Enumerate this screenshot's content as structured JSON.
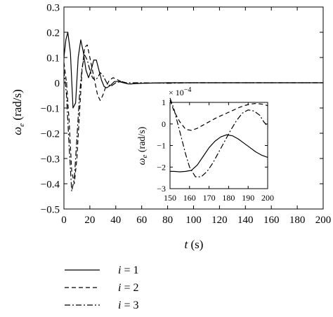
{
  "chart_data": [
    {
      "type": "line",
      "title": "",
      "xlabel": {
        "symbol": "t",
        "unit": " (s)"
      },
      "ylabel": {
        "symbol": "ω",
        "subscript": "e",
        "unit": " (rad/s)"
      },
      "xlim": [
        0,
        200
      ],
      "ylim": [
        -0.5,
        0.3
      ],
      "xticks": [
        "0",
        "20",
        "40",
        "60",
        "80",
        "100",
        "120",
        "140",
        "160",
        "180",
        "200"
      ],
      "yticks": [
        "0.3",
        "0.2",
        "0.1",
        "0",
        "−0.1",
        "−0.2",
        "−0.3",
        "−0.4",
        "−0.5"
      ],
      "series": [
        {
          "name": "i = 1",
          "style": "solid",
          "x": [
            0,
            1.5,
            3,
            5,
            7,
            9,
            11,
            13,
            15,
            17,
            19,
            21,
            23,
            25,
            27,
            29,
            31,
            33,
            36,
            39,
            42,
            46,
            50,
            60,
            80,
            100,
            150,
            200
          ],
          "y": [
            0.1,
            0.17,
            0.2,
            0.12,
            -0.1,
            -0.08,
            0.1,
            0.17,
            0.12,
            0.05,
            0.02,
            0.05,
            0.09,
            0.09,
            0.05,
            0.01,
            -0.015,
            -0.02,
            -0.01,
            0.005,
            0.005,
            0.0,
            -0.005,
            -0.002,
            0.0,
            0.0,
            0.0,
            0.0
          ]
        },
        {
          "name": "i = 2",
          "style": "dashed",
          "x": [
            0,
            2,
            4,
            6,
            8,
            10,
            12,
            14,
            16,
            18,
            20,
            22,
            24,
            26,
            28,
            30,
            32,
            35,
            38,
            42,
            46,
            50,
            60,
            80,
            100,
            150,
            200
          ],
          "y": [
            0.08,
            0.0,
            -0.15,
            -0.35,
            -0.4,
            -0.3,
            -0.12,
            0.05,
            0.14,
            0.15,
            0.1,
            0.05,
            0.0,
            -0.05,
            -0.07,
            -0.05,
            -0.02,
            0.01,
            0.02,
            0.01,
            0.0,
            -0.005,
            -0.002,
            0.0,
            0.0,
            0.0,
            0.0
          ]
        },
        {
          "name": "i = 3",
          "style": "dashdot",
          "x": [
            0,
            2,
            4,
            6,
            8,
            10,
            12,
            14,
            16,
            18,
            20,
            22,
            24,
            26,
            28,
            30,
            33,
            36,
            40,
            44,
            48,
            52,
            60,
            80,
            100,
            150,
            200
          ],
          "y": [
            0.05,
            -0.05,
            -0.25,
            -0.43,
            -0.38,
            -0.22,
            -0.05,
            0.06,
            0.11,
            0.09,
            0.05,
            0.02,
            0.01,
            0.02,
            0.04,
            0.03,
            0.0,
            -0.015,
            0.0,
            0.005,
            0.0,
            0.0,
            0.0,
            -0.002,
            0.0,
            0.0,
            0.0
          ]
        }
      ],
      "legend": "bottom-left"
    },
    {
      "type": "line",
      "title": "",
      "inset": true,
      "scale_label": "× 10",
      "scale_exponent": "−4",
      "xlim": [
        150,
        200
      ],
      "ylim": [
        -3,
        1
      ],
      "xticks": [
        "150",
        "160",
        "170",
        "180",
        "190",
        "200"
      ],
      "yticks": [
        "1",
        "0",
        "−1",
        "−2",
        "−3"
      ],
      "ylabel": {
        "symbol": "ω",
        "subscript": "e",
        "unit": " (rad/s)"
      },
      "series": [
        {
          "name": "i = 1",
          "style": "solid",
          "x": [
            150,
            152,
            155,
            158,
            161,
            164,
            167,
            170,
            173,
            176,
            179,
            182,
            185,
            188,
            191,
            194,
            197,
            200
          ],
          "y": [
            -2.2,
            -2.2,
            -2.22,
            -2.2,
            -2.15,
            -1.9,
            -1.5,
            -1.1,
            -0.8,
            -0.6,
            -0.5,
            -0.55,
            -0.7,
            -0.9,
            -1.1,
            -1.3,
            -1.45,
            -1.55
          ]
        },
        {
          "name": "i = 2",
          "style": "dashed",
          "x": [
            150,
            152,
            155,
            158,
            161,
            164,
            167,
            170,
            173,
            176,
            179,
            182,
            185,
            188,
            191,
            194,
            197,
            200
          ],
          "y": [
            1.1,
            0.6,
            0.1,
            -0.25,
            -0.3,
            -0.2,
            -0.05,
            0.1,
            0.25,
            0.38,
            0.5,
            0.62,
            0.75,
            0.85,
            0.92,
            0.95,
            0.92,
            0.85
          ]
        },
        {
          "name": "i = 3",
          "style": "dashdot",
          "x": [
            150,
            152,
            154,
            156,
            158,
            160,
            163,
            166,
            169,
            172,
            175,
            178,
            181,
            184,
            187,
            190,
            193,
            196,
            198,
            200
          ],
          "y": [
            1.2,
            0.7,
            0.0,
            -0.7,
            -1.4,
            -2.0,
            -2.45,
            -2.45,
            -2.2,
            -1.8,
            -1.3,
            -0.8,
            -0.3,
            0.15,
            0.5,
            0.65,
            0.6,
            0.4,
            0.1,
            -0.1
          ]
        }
      ]
    }
  ]
}
